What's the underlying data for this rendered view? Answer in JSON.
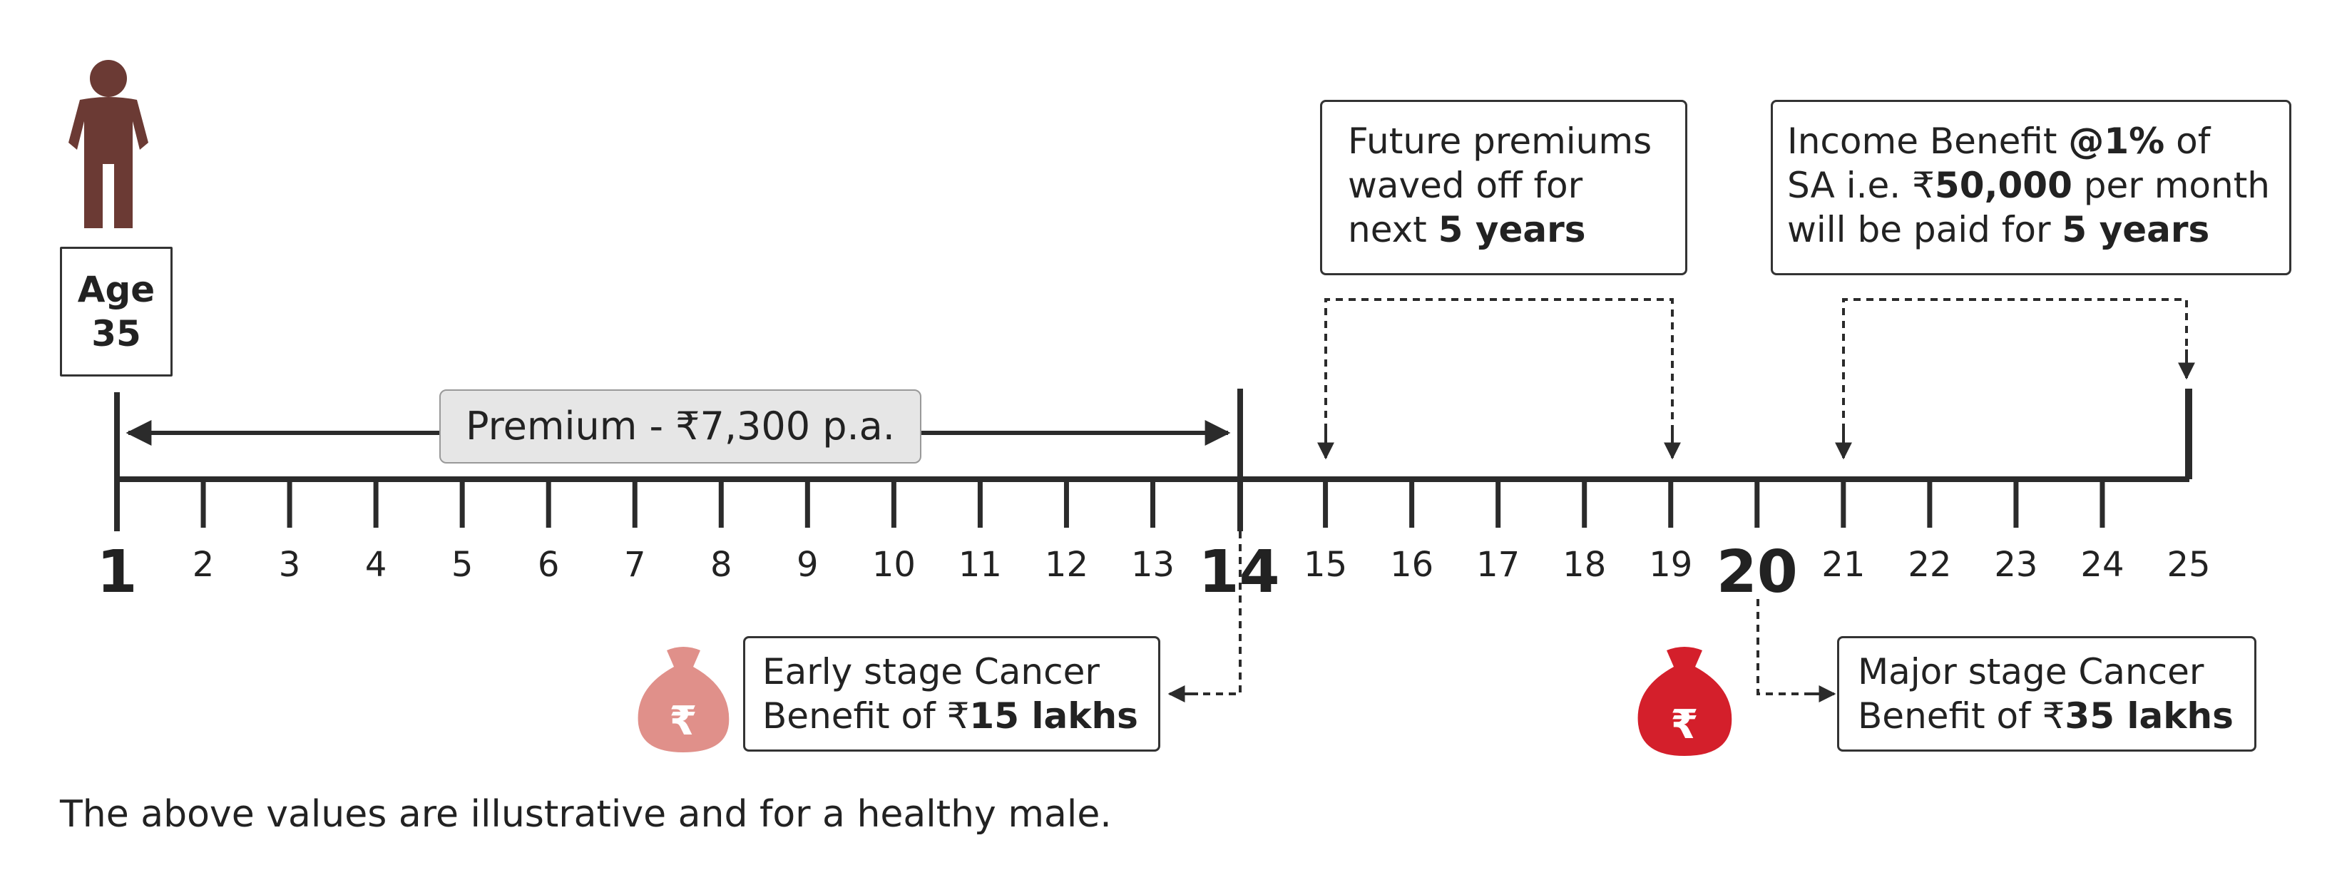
{
  "age_box": {
    "line1": "Age",
    "line2": "35"
  },
  "premium_label": "Premium - ₹7,300 p.a.",
  "future_box": {
    "line1": "Future premiums",
    "line2": "waved off for",
    "line3_pre": "next ",
    "line3_bold": "5 years"
  },
  "income_box": {
    "line1_pre": "Income Benefit ",
    "line1_bold": "@1%",
    "line1_post": " of",
    "line2_pre": "SA i.e. ₹",
    "line2_bold": "50,000",
    "line2_post": " per month",
    "line3_pre": "will be paid for ",
    "line3_bold": "5 years"
  },
  "early_box": {
    "line1": "Early stage Cancer",
    "line2_pre": "Benefit of ₹",
    "line2_bold": "15 lakhs"
  },
  "major_box": {
    "line1": "Major stage Cancer",
    "line2_pre": "Benefit of ₹",
    "line2_bold": "35 lakhs"
  },
  "timeline": {
    "years": [
      "1",
      "2",
      "3",
      "4",
      "5",
      "6",
      "7",
      "8",
      "9",
      "10",
      "11",
      "12",
      "13",
      "14",
      "15",
      "16",
      "17",
      "18",
      "19",
      "20",
      "21",
      "22",
      "23",
      "24",
      "25"
    ],
    "emphasized_years": [
      "1",
      "14",
      "20"
    ]
  },
  "money_bag_symbol": "₹",
  "colors": {
    "person": "#6b3a34",
    "early_bag": "#e0908a",
    "major_bag": "#d41f2b",
    "line": "#2b2b2b"
  },
  "icons": [
    "person-icon",
    "money-bag-icon"
  ],
  "footnote": "The above values are illustrative and for a healthy male."
}
